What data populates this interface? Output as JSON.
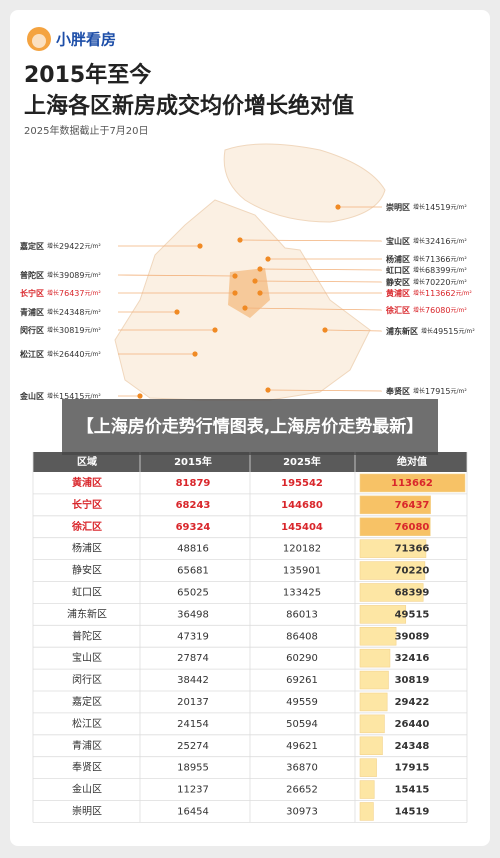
{
  "header": {
    "brand": "小胖看房",
    "title_line1": "2015年至今",
    "title_line2": "上海各区新房成交均价增长绝对值",
    "note": "2025年数据截止于7月20日"
  },
  "map": {
    "prefix": "增长",
    "unit": "元/m²",
    "labels": [
      {
        "district": "嘉定区",
        "value": 29422,
        "color": "#333333"
      },
      {
        "district": "普陀区",
        "value": 39089,
        "color": "#333333"
      },
      {
        "district": "长宁区",
        "value": 76437,
        "color": "#d9262b"
      },
      {
        "district": "青浦区",
        "value": 24348,
        "color": "#333333"
      },
      {
        "district": "闵行区",
        "value": 30819,
        "color": "#333333"
      },
      {
        "district": "松江区",
        "value": 26440,
        "color": "#333333"
      },
      {
        "district": "金山区",
        "value": 15415,
        "color": "#333333"
      },
      {
        "district": "崇明区",
        "value": 14519,
        "color": "#333333"
      },
      {
        "district": "宝山区",
        "value": 32416,
        "color": "#333333"
      },
      {
        "district": "杨浦区",
        "value": 71366,
        "color": "#333333"
      },
      {
        "district": "虹口区",
        "value": 68399,
        "color": "#333333"
      },
      {
        "district": "静安区",
        "value": 70220,
        "color": "#333333"
      },
      {
        "district": "黄浦区",
        "value": 113662,
        "color": "#d9262b"
      },
      {
        "district": "徐汇区",
        "value": 76080,
        "color": "#d9262b"
      },
      {
        "district": "浦东新区",
        "value": 49515,
        "color": "#333333"
      },
      {
        "district": "奉贤区",
        "value": 17915,
        "color": "#333333"
      }
    ]
  },
  "banner": {
    "text": "【上海房价走势行情图表,上海房价走势最新】"
  },
  "table": {
    "columns": [
      "区域",
      "2015年",
      "2025年",
      "绝对值"
    ],
    "rows": [
      {
        "cells": [
          "黄浦区",
          81879,
          195542,
          113662
        ],
        "color": "#d9262b"
      },
      {
        "cells": [
          "长宁区",
          68243,
          144680,
          76437
        ],
        "color": "#d9262b"
      },
      {
        "cells": [
          "徐汇区",
          69324,
          145404,
          76080
        ],
        "color": "#d9262b"
      },
      {
        "cells": [
          "杨浦区",
          48816,
          120182,
          71366
        ],
        "color": "#333333"
      },
      {
        "cells": [
          "静安区",
          65681,
          135901,
          70220
        ],
        "color": "#333333"
      },
      {
        "cells": [
          "虹口区",
          65025,
          133425,
          68399
        ],
        "color": "#333333"
      },
      {
        "cells": [
          "浦东新区",
          36498,
          86013,
          49515
        ],
        "color": "#333333"
      },
      {
        "cells": [
          "普陀区",
          47319,
          86408,
          39089
        ],
        "color": "#333333"
      },
      {
        "cells": [
          "宝山区",
          27874,
          60290,
          32416
        ],
        "color": "#333333"
      },
      {
        "cells": [
          "闵行区",
          38442,
          69261,
          30819
        ],
        "color": "#333333"
      },
      {
        "cells": [
          "嘉定区",
          20137,
          49559,
          29422
        ],
        "color": "#333333"
      },
      {
        "cells": [
          "松江区",
          24154,
          50594,
          26440
        ],
        "color": "#333333"
      },
      {
        "cells": [
          "青浦区",
          25274,
          49621,
          24348
        ],
        "color": "#333333"
      },
      {
        "cells": [
          "奉贤区",
          18955,
          36870,
          17915
        ],
        "color": "#333333"
      },
      {
        "cells": [
          "金山区",
          11237,
          26652,
          15415
        ],
        "color": "#333333"
      },
      {
        "cells": [
          "崇明区",
          16454,
          30973,
          14519
        ],
        "color": "#333333"
      }
    ]
  }
}
